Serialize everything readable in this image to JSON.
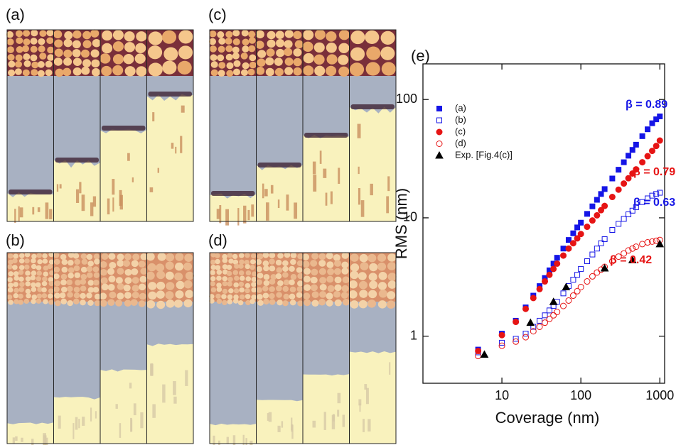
{
  "panel_labels": [
    "(a)",
    "(b)",
    "(c)",
    "(d)"
  ],
  "chart_data": {
    "type": "scatter",
    "label": "(e)",
    "xlabel": "Coverage (nm)",
    "ylabel": "RMS (nm)",
    "xscale": "log",
    "yscale": "log",
    "xlim": [
      1,
      1150
    ],
    "ylim": [
      0.4,
      200
    ],
    "xticks": [
      10,
      100,
      1000
    ],
    "yticks": [
      1,
      10,
      100
    ],
    "x": [
      5,
      10,
      15,
      20,
      25,
      30,
      35,
      40,
      45,
      50,
      60,
      70,
      80,
      90,
      100,
      120,
      140,
      160,
      180,
      200,
      250,
      300,
      350,
      400,
      450,
      500,
      600,
      700,
      800,
      900,
      1000
    ],
    "series": [
      {
        "name": "(a)",
        "color": "#1515e6",
        "marker": "square",
        "filled": true,
        "values": [
          0.77,
          1.05,
          1.35,
          1.75,
          2.2,
          2.65,
          3.1,
          3.6,
          4.1,
          4.6,
          5.5,
          6.5,
          7.4,
          8.3,
          9.1,
          10.8,
          12.5,
          14.2,
          15.9,
          17.5,
          21.5,
          25.5,
          29.5,
          33.5,
          37.5,
          41.5,
          49,
          56,
          63,
          68,
          72
        ]
      },
      {
        "name": "(b)",
        "color": "#1515e6",
        "marker": "square",
        "filled": false,
        "values": [
          0.73,
          0.88,
          0.95,
          1.05,
          1.2,
          1.35,
          1.5,
          1.65,
          1.8,
          1.95,
          2.3,
          2.65,
          3.0,
          3.3,
          3.7,
          4.3,
          4.9,
          5.5,
          6.1,
          6.6,
          7.9,
          8.9,
          9.8,
          10.7,
          11.5,
          12.3,
          13.6,
          14.6,
          15.4,
          15.9,
          16.3
        ]
      },
      {
        "name": "(c)",
        "color": "#e61414",
        "marker": "circle",
        "filled": true,
        "values": [
          0.75,
          1.02,
          1.32,
          1.7,
          2.1,
          2.5,
          2.9,
          3.3,
          3.7,
          4.1,
          4.8,
          5.5,
          6.1,
          6.7,
          7.3,
          8.4,
          9.5,
          10.5,
          11.6,
          12.6,
          15,
          17.3,
          19.5,
          21.6,
          23.7,
          25.7,
          29.5,
          33.2,
          36.8,
          40.5,
          45
        ]
      },
      {
        "name": "(d)",
        "color": "#e61414",
        "marker": "circle",
        "filled": false,
        "values": [
          0.68,
          0.83,
          0.9,
          0.98,
          1.1,
          1.2,
          1.3,
          1.4,
          1.5,
          1.6,
          1.8,
          2.0,
          2.2,
          2.4,
          2.6,
          2.9,
          3.2,
          3.45,
          3.65,
          3.85,
          4.3,
          4.7,
          5.0,
          5.3,
          5.5,
          5.7,
          6.0,
          6.2,
          6.3,
          6.4,
          6.5
        ]
      },
      {
        "name": "Exp. [Fig.4(c)]",
        "color": "#000000",
        "marker": "triangle",
        "filled": true,
        "x": [
          6,
          23,
          45,
          65,
          200,
          450,
          1000
        ],
        "values": [
          0.7,
          1.3,
          1.95,
          2.6,
          3.75,
          4.4,
          6.0
        ]
      }
    ],
    "annotations": [
      {
        "text": "β = 0.89",
        "color": "#1515e6"
      },
      {
        "text": "β = 0.79",
        "color": "#e61414"
      },
      {
        "text": "β = 0.63",
        "color": "#1515e6"
      },
      {
        "text": "β = 0.42",
        "color": "#e61414"
      }
    ]
  }
}
